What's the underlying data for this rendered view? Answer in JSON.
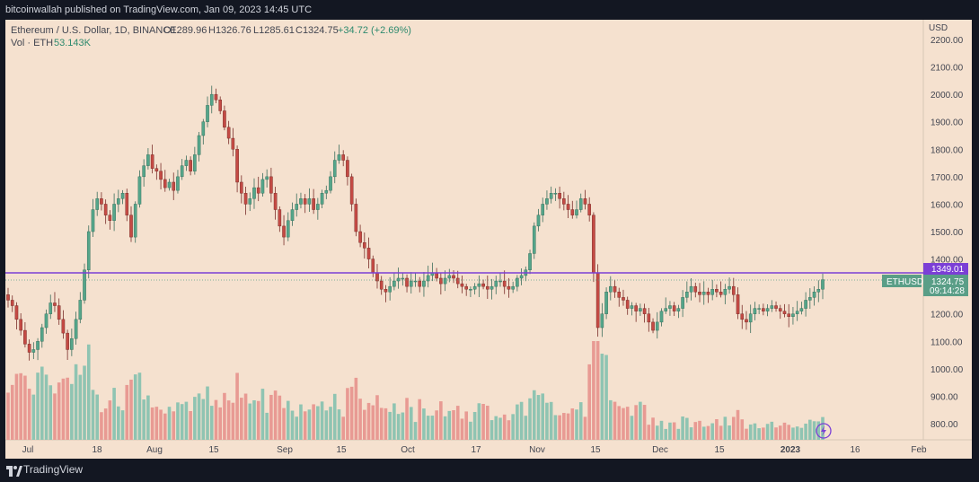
{
  "header": {
    "published": "bitcoinwallah published on TradingView.com, Jan 09, 2023 14:45 UTC"
  },
  "legend": {
    "symbol": "Ethereum / U.S. Dollar, 1D, BINANCE",
    "o": "O1289.96",
    "h": "H1326.76",
    "l": "L1285.61",
    "c": "C1324.75",
    "chg": "+34.72 (+2.69%)",
    "vol_label": "Vol · ETH",
    "vol_value": "53.143K"
  },
  "price_axis": {
    "currency": "USD"
  },
  "labels": {
    "resistance": "1349.01",
    "ticker": "ETHUSD",
    "last_price": "1324.75",
    "countdown": "09:14:28"
  },
  "footer": {
    "brand": "TradingView"
  },
  "colors": {
    "background": "#f5e1cf",
    "up": "#55a58a",
    "down": "#c44a44",
    "vol_up": "#8fc4b2",
    "vol_down": "#e89a93",
    "resistance": "#7b3fd6"
  },
  "chart_data": {
    "type": "candlestick",
    "symbol": "ETHUSD",
    "interval": "1D",
    "ylim": [
      760,
      2260
    ],
    "y_ticks": [
      800,
      900,
      1000,
      1100,
      1200,
      1300,
      1400,
      1500,
      1600,
      1700,
      1800,
      1900,
      2000,
      2100,
      2200
    ],
    "x_ticks": [
      "Jul",
      "18",
      "Aug",
      "15",
      "Sep",
      "15",
      "Oct",
      "17",
      "Nov",
      "15",
      "Dec",
      "15",
      "2023",
      "16",
      "Feb"
    ],
    "resistance_level": 1349.01,
    "last_close": 1324.75,
    "trend_closes": [
      1250,
      1230,
      1180,
      1140,
      1090,
      1060,
      1070,
      1100,
      1150,
      1200,
      1240,
      1230,
      1180,
      1130,
      1070,
      1110,
      1180,
      1250,
      1360,
      1500,
      1580,
      1620,
      1600,
      1560,
      1540,
      1600,
      1620,
      1640,
      1560,
      1480,
      1600,
      1700,
      1740,
      1780,
      1730,
      1720,
      1690,
      1660,
      1680,
      1650,
      1700,
      1740,
      1760,
      1720,
      1780,
      1850,
      1900,
      1960,
      2000,
      1980,
      1940,
      1880,
      1840,
      1800,
      1680,
      1640,
      1600,
      1620,
      1660,
      1640,
      1690,
      1700,
      1640,
      1580,
      1520,
      1480,
      1540,
      1580,
      1600,
      1620,
      1600,
      1620,
      1580,
      1600,
      1640,
      1650,
      1700,
      1760,
      1780,
      1760,
      1700,
      1600,
      1500,
      1460,
      1440,
      1400,
      1350,
      1320,
      1290,
      1280,
      1300,
      1320,
      1330,
      1330,
      1300,
      1320,
      1320,
      1300,
      1320,
      1340,
      1350,
      1330,
      1310,
      1330,
      1340,
      1330,
      1310,
      1300,
      1290,
      1290,
      1300,
      1310,
      1300,
      1290,
      1300,
      1320,
      1320,
      1300,
      1290,
      1300,
      1330,
      1340,
      1360,
      1420,
      1520,
      1560,
      1600,
      1620,
      1640,
      1640,
      1620,
      1600,
      1580,
      1560,
      1580,
      1620,
      1600,
      1560,
      1350,
      1150,
      1200,
      1280,
      1300,
      1280,
      1260,
      1250,
      1220,
      1230,
      1210,
      1220,
      1200,
      1170,
      1140,
      1170,
      1210,
      1220,
      1230,
      1210,
      1220,
      1260,
      1280,
      1300,
      1280,
      1270,
      1280,
      1270,
      1290,
      1280,
      1270,
      1290,
      1300,
      1270,
      1200,
      1180,
      1170,
      1200,
      1220,
      1220,
      1210,
      1220,
      1230,
      1220,
      1210,
      1200,
      1190,
      1200,
      1210,
      1220,
      1250,
      1260,
      1280,
      1290,
      1324.75
    ],
    "volume_note": "relative volume bars beneath candles"
  }
}
